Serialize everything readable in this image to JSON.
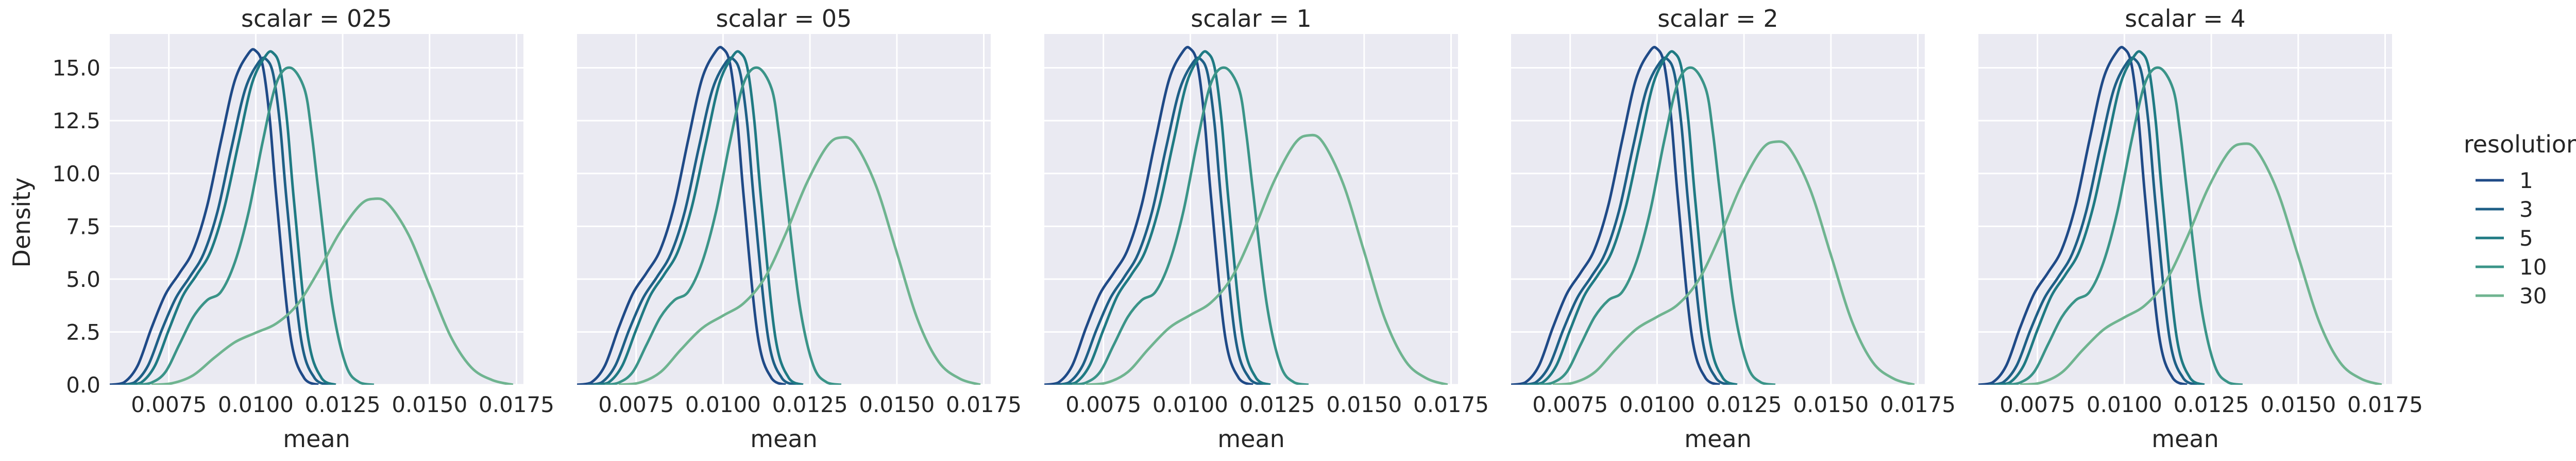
{
  "chart_data": {
    "type": "line",
    "facet_variable": "scalar",
    "panels": [
      {
        "title": "scalar = 025",
        "peaks": [
          15.8,
          15.4,
          15.7,
          15.0,
          8.8
        ]
      },
      {
        "title": "scalar = 05",
        "peaks": [
          15.9,
          15.4,
          15.7,
          15.0,
          11.7
        ]
      },
      {
        "title": "scalar = 1",
        "peaks": [
          15.9,
          15.4,
          15.7,
          15.0,
          11.8
        ]
      },
      {
        "title": "scalar = 2",
        "peaks": [
          15.9,
          15.4,
          15.7,
          15.0,
          11.5
        ]
      },
      {
        "title": "scalar = 4",
        "peaks": [
          15.9,
          15.4,
          15.7,
          15.0,
          11.4
        ]
      }
    ],
    "xlabel": "mean",
    "ylabel": "Density",
    "xlim": [
      0.0058,
      0.0177
    ],
    "ylim": [
      0,
      16.6
    ],
    "xticks": [
      0.0075,
      0.01,
      0.0125,
      0.015,
      0.0175
    ],
    "xtick_labels": [
      "0.0075",
      "0.0100",
      "0.0125",
      "0.0150",
      "0.0175"
    ],
    "yticks": [
      0,
      2.5,
      5,
      7.5,
      10,
      12.5,
      15
    ],
    "ytick_labels": [
      "0.0",
      "2.5",
      "5.0",
      "7.5",
      "10.0",
      "12.5",
      "15.0"
    ],
    "grid": true,
    "legend": {
      "title": "resolution",
      "placement": "right"
    },
    "series": [
      {
        "name": "1",
        "color": "#1f4a87",
        "x": [
          0.0058,
          0.0062,
          0.0066,
          0.007,
          0.0074,
          0.0078,
          0.0082,
          0.0086,
          0.009,
          0.0094,
          0.0098,
          0.01,
          0.0102,
          0.0104,
          0.0106,
          0.011,
          0.0114,
          0.0118
        ],
        "y": [
          0,
          0.1,
          0.9,
          2.7,
          4.3,
          5.3,
          6.4,
          8.5,
          11.6,
          14.5,
          15.8,
          15.9,
          15.2,
          12.7,
          8.8,
          2.3,
          0.3,
          0
        ]
      },
      {
        "name": "3",
        "color": "#1e5f86",
        "x": [
          0.0061,
          0.0065,
          0.0069,
          0.0073,
          0.0077,
          0.0081,
          0.0085,
          0.0089,
          0.0093,
          0.0097,
          0.0101,
          0.0103,
          0.0105,
          0.0107,
          0.0109,
          0.0113,
          0.0117,
          0.0121
        ],
        "y": [
          0,
          0.1,
          0.9,
          2.6,
          4.1,
          5.1,
          6.2,
          8.2,
          11.2,
          14.0,
          15.3,
          15.4,
          14.7,
          12.3,
          8.5,
          2.2,
          0.3,
          0
        ]
      },
      {
        "name": "5",
        "color": "#1f7a83",
        "x": [
          0.0063,
          0.0067,
          0.0071,
          0.0075,
          0.0079,
          0.0083,
          0.0087,
          0.0091,
          0.0095,
          0.0099,
          0.0103,
          0.0105,
          0.0107,
          0.0109,
          0.0111,
          0.0115,
          0.0119,
          0.0123
        ],
        "y": [
          0,
          0.1,
          0.9,
          2.6,
          4.2,
          5.2,
          6.3,
          8.4,
          11.4,
          14.3,
          15.6,
          15.7,
          15.0,
          12.5,
          8.7,
          2.3,
          0.3,
          0
        ]
      },
      {
        "name": "10",
        "color": "#3a9488",
        "x": [
          0.0066,
          0.007,
          0.0074,
          0.0078,
          0.0082,
          0.0086,
          0.009,
          0.0094,
          0.0098,
          0.0102,
          0.0106,
          0.011,
          0.0114,
          0.0116,
          0.0118,
          0.0122,
          0.0126,
          0.013,
          0.0134
        ],
        "y": [
          0,
          0.1,
          0.6,
          1.9,
          3.2,
          4.0,
          4.4,
          5.8,
          8.2,
          11.5,
          14.3,
          15.0,
          14.0,
          12.0,
          9.2,
          3.8,
          0.9,
          0.1,
          0
        ]
      },
      {
        "name": "30",
        "color": "#6fb490",
        "x": [
          0.007,
          0.0076,
          0.0082,
          0.0088,
          0.0094,
          0.01,
          0.0106,
          0.0112,
          0.0118,
          0.0124,
          0.013,
          0.0134,
          0.0138,
          0.0144,
          0.015,
          0.0156,
          0.0162,
          0.0168,
          0.0174
        ],
        "y": [
          0,
          0.1,
          0.6,
          1.7,
          2.7,
          3.3,
          3.9,
          5.1,
          7.2,
          9.6,
          11.4,
          11.8,
          11.5,
          9.5,
          6.3,
          3.1,
          1.1,
          0.3,
          0
        ]
      }
    ]
  }
}
